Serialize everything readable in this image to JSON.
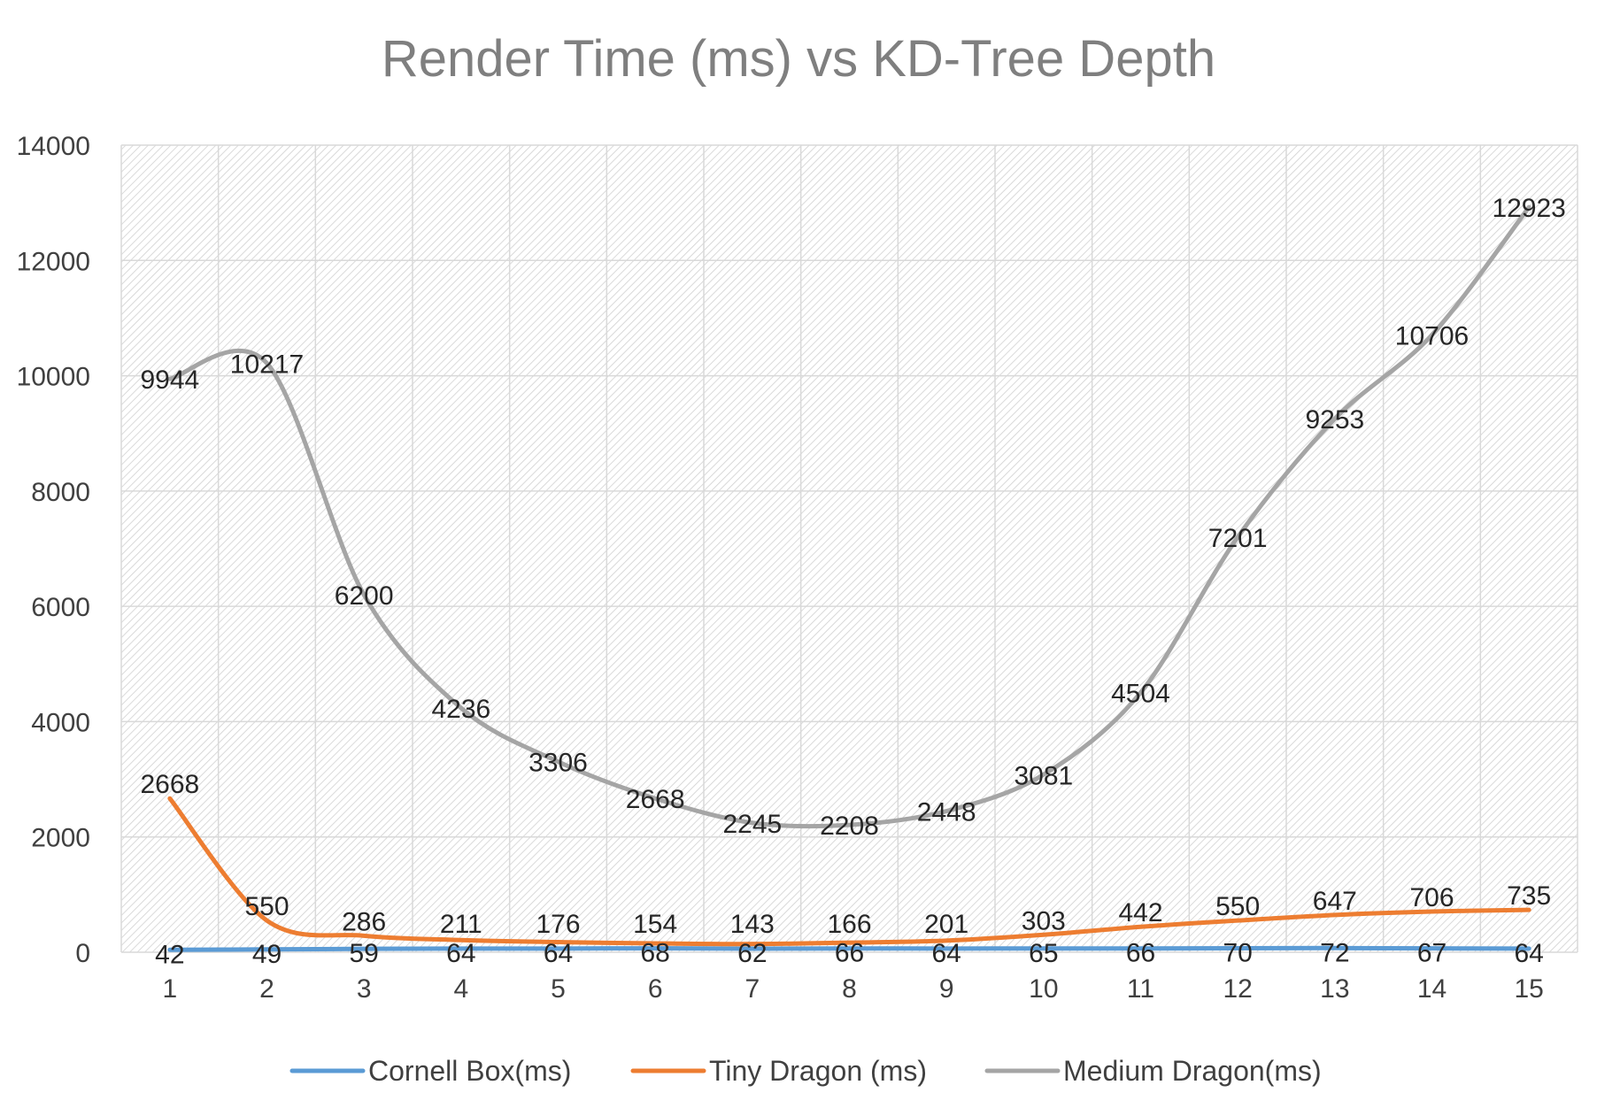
{
  "chart_data": {
    "type": "line",
    "title": "Render Time (ms) vs KD-Tree Depth",
    "xlabel": "",
    "ylabel": "",
    "categories": [
      "1",
      "2",
      "3",
      "4",
      "5",
      "6",
      "7",
      "8",
      "9",
      "10",
      "11",
      "12",
      "13",
      "14",
      "15"
    ],
    "ylim": [
      0,
      14000
    ],
    "y_ticks": [
      "0",
      "2000",
      "4000",
      "6000",
      "8000",
      "10000",
      "12000",
      "14000"
    ],
    "grid": true,
    "legend_position": "bottom",
    "series": [
      {
        "name": "Cornell Box(ms)",
        "color": "#5b9bd5",
        "values": [
          42,
          49,
          59,
          64,
          64,
          68,
          62,
          66,
          64,
          65,
          66,
          70,
          72,
          67,
          64
        ]
      },
      {
        "name": "Tiny Dragon (ms)",
        "color": "#ed7d31",
        "values": [
          2668,
          550,
          286,
          211,
          176,
          154,
          143,
          166,
          201,
          303,
          442,
          550,
          647,
          706,
          735
        ]
      },
      {
        "name": "Medium Dragon(ms)",
        "color": "#a5a5a5",
        "values": [
          9944,
          10217,
          6200,
          4236,
          3306,
          2668,
          2245,
          2208,
          2448,
          3081,
          4504,
          7201,
          9253,
          10706,
          12923
        ]
      }
    ]
  }
}
